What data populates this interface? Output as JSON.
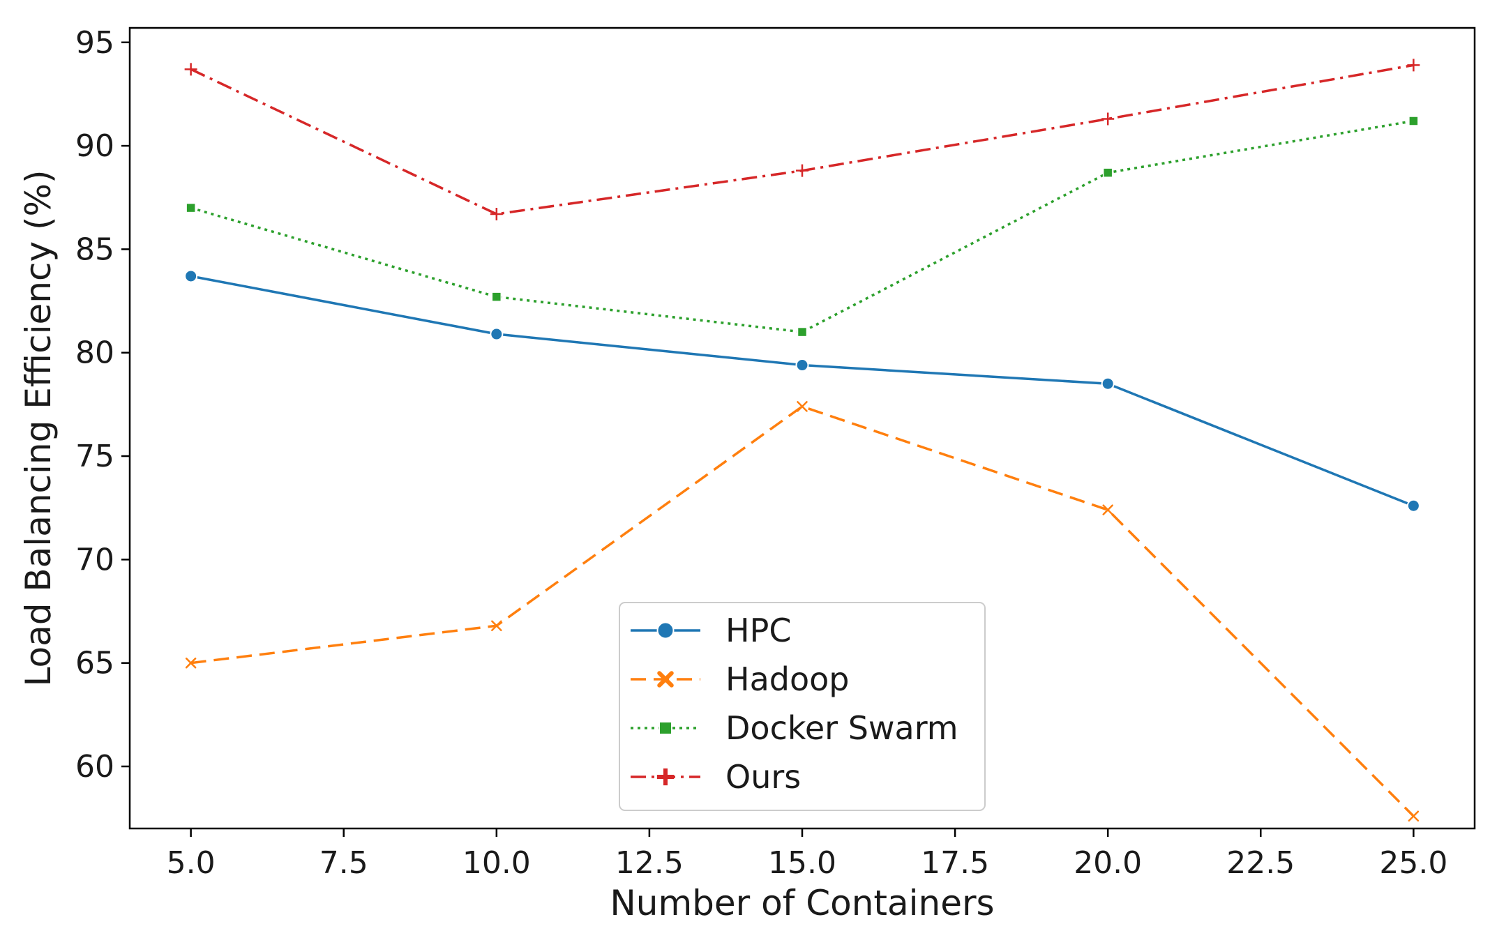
{
  "chart_data": {
    "type": "line",
    "title": "",
    "xlabel": "Number of Containers",
    "ylabel": "Load Balancing Efficiency (%)",
    "xlim": [
      4.0,
      26.0
    ],
    "ylim": [
      57.0,
      95.7
    ],
    "xticks": [
      5.0,
      7.5,
      10.0,
      12.5,
      15.0,
      17.5,
      20.0,
      22.5,
      25.0
    ],
    "xtick_labels": [
      "5.0",
      "7.5",
      "10.0",
      "12.5",
      "15.0",
      "17.5",
      "20.0",
      "22.5",
      "25.0"
    ],
    "yticks": [
      60,
      65,
      70,
      75,
      80,
      85,
      90,
      95
    ],
    "ytick_labels": [
      "60",
      "65",
      "70",
      "75",
      "80",
      "85",
      "90",
      "95"
    ],
    "grid": false,
    "legend_position": "bottom-center",
    "x": [
      5,
      10,
      15,
      20,
      25
    ],
    "series": [
      {
        "name": "HPC",
        "values": [
          83.7,
          80.9,
          79.4,
          78.5,
          72.6
        ],
        "color": "#1f77b4",
        "marker": "circle",
        "linestyle": "solid"
      },
      {
        "name": "Hadoop",
        "values": [
          65.0,
          66.8,
          77.4,
          72.4,
          57.6
        ],
        "color": "#ff7f0e",
        "marker": "x",
        "linestyle": "dashed"
      },
      {
        "name": "Docker Swarm",
        "values": [
          87.0,
          82.7,
          81.0,
          88.7,
          91.2
        ],
        "color": "#2ca02c",
        "marker": "square",
        "linestyle": "dotted"
      },
      {
        "name": "Ours",
        "values": [
          93.7,
          86.7,
          88.8,
          91.3,
          93.9
        ],
        "color": "#d62728",
        "marker": "plus",
        "linestyle": "dashdot"
      }
    ]
  }
}
